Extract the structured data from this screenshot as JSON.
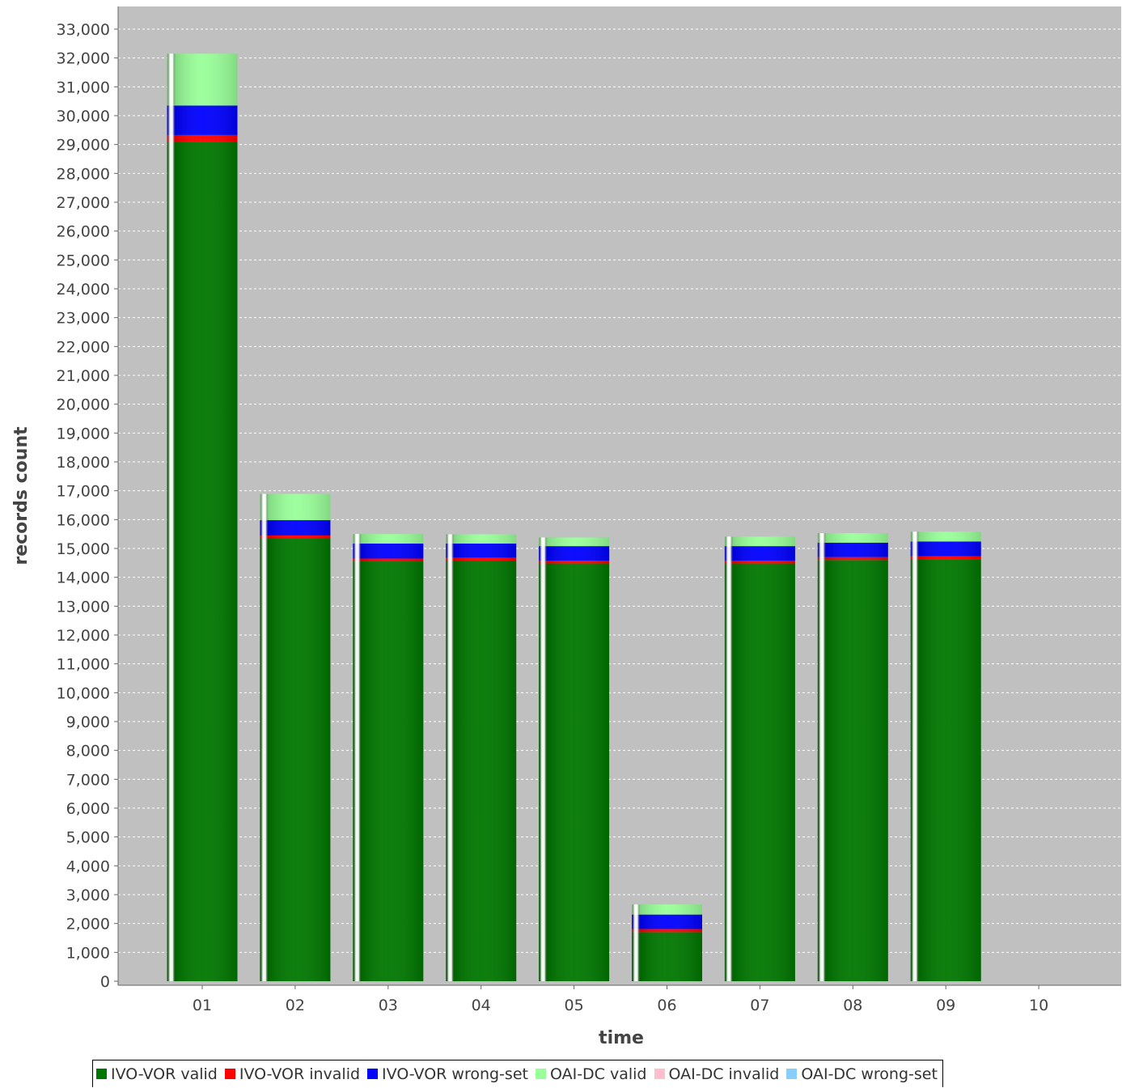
{
  "chart_data": {
    "type": "bar",
    "stacked": true,
    "xlabel": "time",
    "ylabel": "records count",
    "ylim": [
      0,
      33700
    ],
    "yticks": [
      0,
      1000,
      2000,
      3000,
      4000,
      5000,
      6000,
      7000,
      8000,
      9000,
      10000,
      11000,
      12000,
      13000,
      14000,
      15000,
      16000,
      17000,
      18000,
      19000,
      20000,
      21000,
      22000,
      23000,
      24000,
      25000,
      26000,
      27000,
      28000,
      29000,
      30000,
      31000,
      32000,
      33000
    ],
    "ytick_labels": [
      "0",
      "1,000",
      "2,000",
      "3,000",
      "4,000",
      "5,000",
      "6,000",
      "7,000",
      "8,000",
      "9,000",
      "10,000",
      "11,000",
      "12,000",
      "13,000",
      "14,000",
      "15,000",
      "16,000",
      "17,000",
      "18,000",
      "19,000",
      "20,000",
      "21,000",
      "22,000",
      "23,000",
      "24,000",
      "25,000",
      "26,000",
      "27,000",
      "28,000",
      "29,000",
      "30,000",
      "31,000",
      "32,000",
      "33,000"
    ],
    "categories": [
      "01",
      "02",
      "03",
      "04",
      "05",
      "06",
      "07",
      "08",
      "09",
      "10"
    ],
    "series": [
      {
        "name": "IVO-VOR valid",
        "color": "#007700",
        "values": [
          29100,
          15350,
          14550,
          14580,
          14480,
          1700,
          14480,
          14600,
          14620,
          0
        ]
      },
      {
        "name": "IVO-VOR invalid",
        "color": "#ff0000",
        "values": [
          230,
          100,
          100,
          100,
          100,
          110,
          100,
          100,
          110,
          0
        ]
      },
      {
        "name": "IVO-VOR wrong-set",
        "color": "#0000ff",
        "values": [
          1020,
          530,
          520,
          490,
          500,
          500,
          500,
          500,
          510,
          0
        ]
      },
      {
        "name": "OAI-DC valid",
        "color": "#99ff99",
        "values": [
          1800,
          910,
          330,
          320,
          300,
          350,
          330,
          330,
          340,
          0
        ]
      },
      {
        "name": "OAI-DC invalid",
        "color": "#ffc0cb",
        "values": [
          0,
          0,
          0,
          0,
          0,
          0,
          0,
          0,
          0,
          0
        ]
      },
      {
        "name": "OAI-DC wrong-set",
        "color": "#87cefa",
        "values": [
          0,
          0,
          0,
          0,
          0,
          0,
          0,
          0,
          0,
          0
        ]
      }
    ],
    "plot_background": "#c0c0c0",
    "grid": true,
    "legend_position": "bottom"
  }
}
